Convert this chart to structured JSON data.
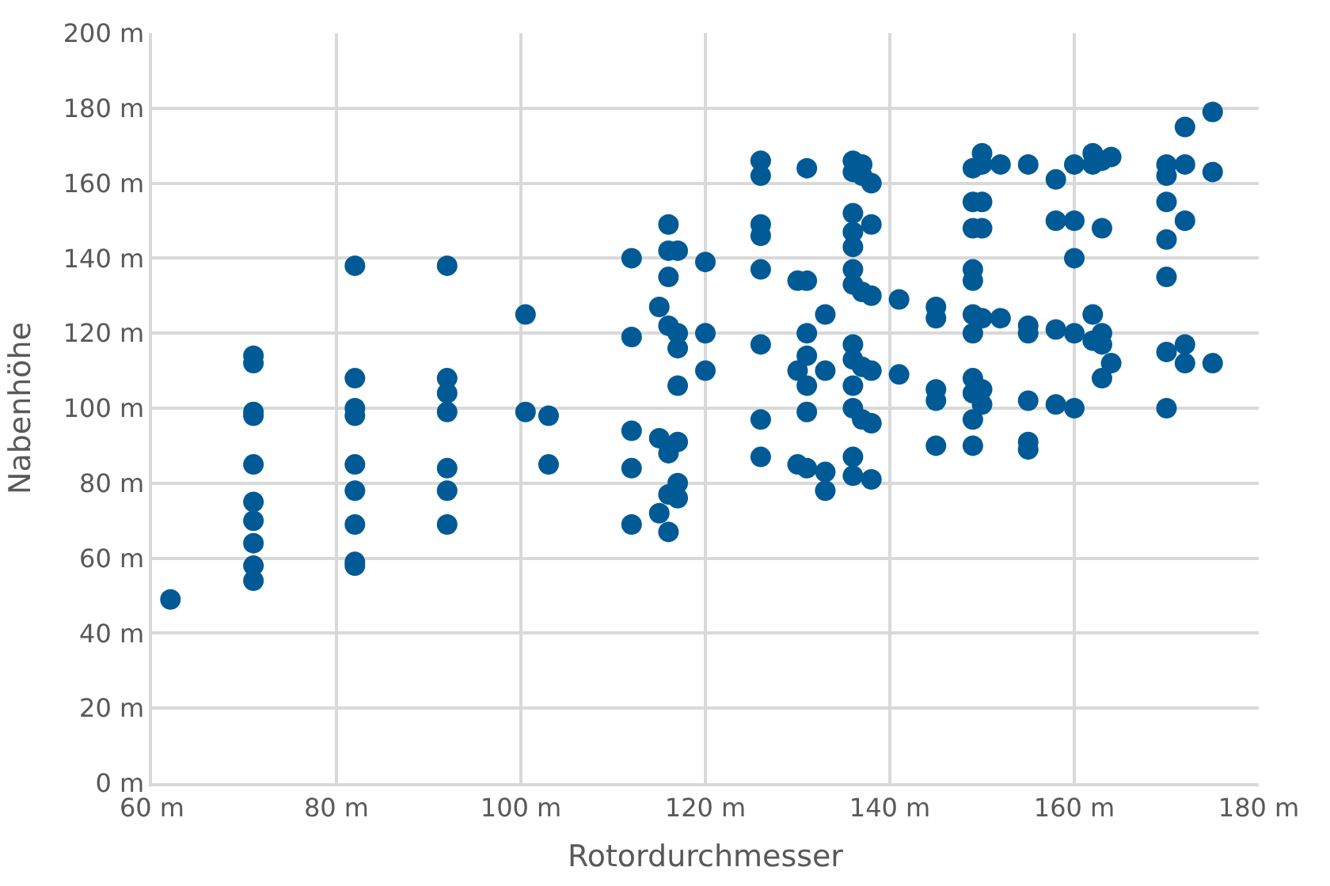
{
  "chart_data": {
    "type": "scatter",
    "xlabel": "Rotordurchmesser",
    "ylabel": "Nabenhöhe",
    "xlim": [
      60,
      180
    ],
    "ylim": [
      0,
      200
    ],
    "xticks": [
      {
        "value": 60,
        "label": "60 m"
      },
      {
        "value": 80,
        "label": "80 m"
      },
      {
        "value": 100,
        "label": "100 m"
      },
      {
        "value": 120,
        "label": "120 m"
      },
      {
        "value": 140,
        "label": "140 m"
      },
      {
        "value": 160,
        "label": "160 m"
      },
      {
        "value": 180,
        "label": "180 m"
      }
    ],
    "yticks": [
      {
        "value": 0,
        "label": "0 m"
      },
      {
        "value": 20,
        "label": "20 m"
      },
      {
        "value": 40,
        "label": "40 m"
      },
      {
        "value": 60,
        "label": "60 m"
      },
      {
        "value": 80,
        "label": "80 m"
      },
      {
        "value": 100,
        "label": "100 m"
      },
      {
        "value": 120,
        "label": "120 m"
      },
      {
        "value": 140,
        "label": "140 m"
      },
      {
        "value": 160,
        "label": "160 m"
      },
      {
        "value": 180,
        "label": "180 m"
      },
      {
        "value": 200,
        "label": "200 m"
      }
    ],
    "grid": true,
    "marker": "circle",
    "series": [
      {
        "color": "#005a96",
        "x": [
          62,
          71,
          71,
          71,
          71,
          71,
          71,
          71,
          71,
          71,
          71,
          82,
          82,
          82,
          82,
          82,
          82,
          82,
          82,
          82,
          92,
          92,
          92,
          92,
          92,
          92,
          92,
          100.5,
          100.5,
          103,
          103,
          112,
          112,
          112,
          112,
          112,
          115,
          115,
          115,
          116,
          116,
          116,
          116,
          116,
          116,
          116,
          117,
          117,
          117,
          117,
          117,
          117,
          117,
          120,
          120,
          120,
          126,
          126,
          126,
          126,
          126,
          126,
          126,
          126,
          130,
          130,
          130,
          131,
          131,
          131,
          131,
          131,
          131,
          131,
          133,
          133,
          133,
          133,
          136,
          136,
          136,
          136,
          136,
          136,
          136,
          136,
          136,
          136,
          136,
          136,
          136,
          137,
          137,
          137,
          137,
          137,
          138,
          138,
          138,
          138,
          138,
          138,
          141,
          141,
          145,
          145,
          145,
          145,
          145,
          149,
          149,
          149,
          149,
          149,
          149,
          149,
          149,
          149,
          149,
          149,
          150,
          150,
          150,
          150,
          150,
          150,
          150,
          152,
          152,
          155,
          155,
          155,
          155,
          155,
          155,
          158,
          158,
          158,
          158,
          160,
          160,
          160,
          160,
          160,
          162,
          162,
          162,
          162,
          163,
          163,
          163,
          163,
          163,
          164,
          164,
          170,
          170,
          170,
          170,
          170,
          170,
          170,
          172,
          172,
          172,
          172,
          172,
          175,
          175,
          175
        ],
        "values": [
          49,
          114,
          112,
          99,
          98,
          85,
          75,
          70,
          64,
          58,
          54,
          138,
          108,
          100,
          98,
          85,
          78,
          69,
          59,
          58,
          138,
          108,
          104,
          99,
          84,
          78,
          69,
          125,
          99,
          98,
          85,
          140,
          119,
          94,
          84,
          69,
          127,
          92,
          72,
          149,
          142,
          135,
          122,
          88,
          77,
          67,
          142,
          120,
          116,
          106,
          91,
          80,
          76,
          139,
          120,
          110,
          166,
          162,
          149,
          146,
          137,
          117,
          97,
          87,
          134,
          110,
          85,
          164,
          134,
          120,
          114,
          106,
          99,
          84,
          125,
          110,
          83,
          78,
          166,
          163,
          152,
          147,
          143,
          137,
          133,
          117,
          113,
          106,
          100,
          87,
          82,
          165,
          162,
          131,
          111,
          97,
          160,
          149,
          130,
          110,
          96,
          81,
          129,
          109,
          127,
          124,
          105,
          102,
          90,
          164,
          155,
          148,
          137,
          134,
          125,
          120,
          108,
          104,
          97,
          90,
          168,
          165,
          155,
          148,
          124,
          105,
          101,
          165,
          124,
          165,
          122,
          120,
          102,
          91,
          89,
          161,
          150,
          121,
          101,
          165,
          150,
          140,
          120,
          100,
          168,
          165,
          125,
          118,
          166,
          148,
          120,
          117,
          108,
          167,
          112,
          165,
          162,
          155,
          145,
          135,
          115,
          100,
          175,
          165,
          150,
          117,
          112,
          179,
          163,
          112
        ]
      }
    ]
  }
}
